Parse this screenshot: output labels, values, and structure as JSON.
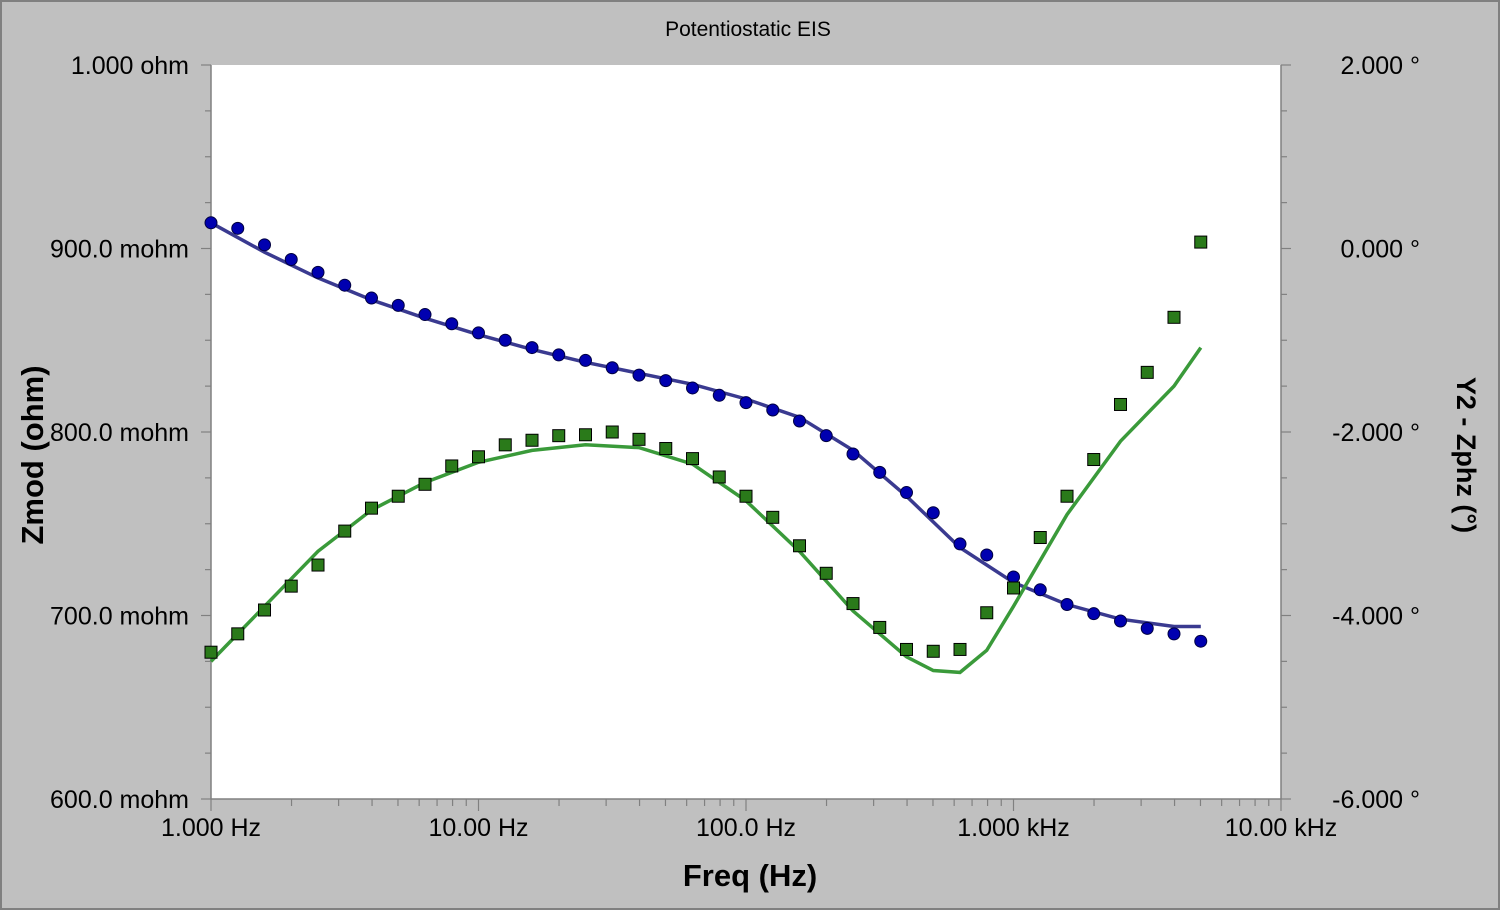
{
  "chart_data": {
    "type": "scatter",
    "title": "Potentiostatic EIS",
    "xlabel": "Freq (Hz)",
    "ylabel": "Zmod (ohm)",
    "y2label": "Y2 - Zphz (°)",
    "x_scale": "log",
    "xlim": [
      1,
      10000
    ],
    "ylim": [
      0.6,
      1.0
    ],
    "y2lim": [
      -6,
      2
    ],
    "x_ticks": [
      {
        "value": 1,
        "label": "1.000 Hz"
      },
      {
        "value": 10,
        "label": "10.00 Hz"
      },
      {
        "value": 100,
        "label": "100.0 Hz"
      },
      {
        "value": 1000,
        "label": "1.000 kHz"
      },
      {
        "value": 10000,
        "label": "10.00 kHz"
      }
    ],
    "y_ticks": [
      {
        "value": 1.0,
        "label": "1.000 ohm"
      },
      {
        "value": 0.9,
        "label": "900.0 mohm"
      },
      {
        "value": 0.8,
        "label": "800.0 mohm"
      },
      {
        "value": 0.7,
        "label": "700.0 mohm"
      },
      {
        "value": 0.6,
        "label": "600.0 mohm"
      }
    ],
    "y2_ticks": [
      {
        "value": 2,
        "label": "2.000 °"
      },
      {
        "value": 0,
        "label": "0.000 °"
      },
      {
        "value": -2,
        "label": "-2.000 °"
      },
      {
        "value": -4,
        "label": "-4.000 °"
      },
      {
        "value": -6,
        "label": "-6.000 °"
      }
    ],
    "grid": false,
    "colors": {
      "zmod_points": "#0000b0",
      "zmod_fit": "#3a3a90",
      "phase_points": "#2a7a1a",
      "phase_fit": "#3a9a3a",
      "plot_background": "#ffffff",
      "window_background": "#c0c0c0"
    },
    "series": [
      {
        "axis": "left",
        "marker": "circle",
        "kind": "points",
        "x": [
          1,
          1.259,
          1.585,
          1.995,
          2.512,
          3.162,
          3.981,
          5.012,
          6.31,
          7.943,
          10,
          12.59,
          15.85,
          19.95,
          25.12,
          31.62,
          39.81,
          50.12,
          63.1,
          79.43,
          100,
          125.9,
          158.5,
          199.5,
          251.2,
          316.2,
          398.1,
          501.2,
          631,
          794.3,
          1000,
          1259,
          1585,
          1995,
          2512,
          3162,
          3981,
          5012
        ],
        "y": [
          0.914,
          0.911,
          0.902,
          0.894,
          0.887,
          0.88,
          0.873,
          0.869,
          0.864,
          0.859,
          0.854,
          0.85,
          0.846,
          0.842,
          0.839,
          0.835,
          0.831,
          0.828,
          0.824,
          0.82,
          0.816,
          0.812,
          0.806,
          0.798,
          0.788,
          0.778,
          0.767,
          0.756,
          0.739,
          0.733,
          0.721,
          0.714,
          0.706,
          0.701,
          0.697,
          0.693,
          0.69,
          0.686
        ]
      },
      {
        "axis": "left",
        "marker": "none",
        "kind": "fit",
        "x": [
          1,
          1.585,
          2.512,
          3.981,
          6.31,
          10,
          15.85,
          25.12,
          39.81,
          63.1,
          100,
          158.5,
          251.2,
          398.1,
          631,
          1000,
          1585,
          2512,
          3981,
          5012
        ],
        "y": [
          0.914,
          0.898,
          0.884,
          0.872,
          0.862,
          0.853,
          0.845,
          0.838,
          0.832,
          0.826,
          0.818,
          0.808,
          0.79,
          0.765,
          0.737,
          0.718,
          0.706,
          0.698,
          0.694,
          0.694
        ]
      },
      {
        "axis": "right",
        "marker": "square",
        "kind": "points",
        "x": [
          1,
          1.259,
          1.585,
          1.995,
          2.512,
          3.162,
          3.981,
          5.012,
          6.31,
          7.943,
          10,
          12.59,
          15.85,
          19.95,
          25.12,
          31.62,
          39.81,
          50.12,
          63.1,
          79.43,
          100,
          125.9,
          158.5,
          199.5,
          251.2,
          316.2,
          398.1,
          501.2,
          631,
          794.3,
          1000,
          1259,
          1585,
          1995,
          2512,
          3162,
          3981,
          5012
        ],
        "y": [
          -4.4,
          -4.2,
          -3.94,
          -3.68,
          -3.45,
          -3.08,
          -2.83,
          -2.7,
          -2.57,
          -2.37,
          -2.27,
          -2.14,
          -2.09,
          -2.04,
          -2.03,
          -2.0,
          -2.08,
          -2.18,
          -2.29,
          -2.49,
          -2.7,
          -2.93,
          -3.24,
          -3.54,
          -3.87,
          -4.13,
          -4.37,
          -4.39,
          -4.37,
          -3.97,
          -3.7,
          -3.15,
          -2.7,
          -2.3,
          -1.7,
          -1.35,
          -0.75,
          0.07
        ]
      },
      {
        "axis": "right",
        "marker": "none",
        "kind": "fit",
        "x": [
          1,
          1.585,
          2.512,
          3.981,
          6.31,
          10,
          15.85,
          25.12,
          39.81,
          63.1,
          100,
          158.5,
          251.2,
          398.1,
          501.2,
          631,
          794.3,
          1000,
          1585,
          2512,
          3981,
          5012
        ],
        "y": [
          -4.5,
          -3.9,
          -3.3,
          -2.85,
          -2.55,
          -2.33,
          -2.2,
          -2.14,
          -2.17,
          -2.35,
          -2.75,
          -3.3,
          -3.95,
          -4.45,
          -4.6,
          -4.62,
          -4.38,
          -3.9,
          -2.9,
          -2.1,
          -1.5,
          -1.08
        ]
      }
    ]
  }
}
